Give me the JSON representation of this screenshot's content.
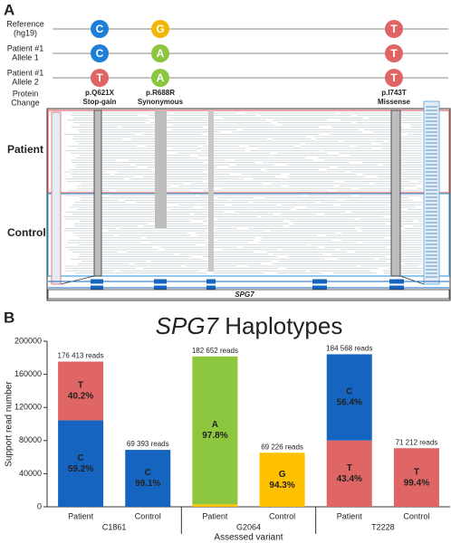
{
  "panel_a": {
    "label": "A",
    "allele_colors": {
      "C": "#1e7fd6",
      "G": "#f2b705",
      "T": "#e06464",
      "A": "#8cc63f"
    },
    "rows": [
      {
        "label": [
          "Reference",
          "(hg19)"
        ],
        "alleles": [
          "C",
          "G",
          "T"
        ]
      },
      {
        "label": [
          "Patient #1",
          "Allele 1"
        ],
        "alleles": [
          "C",
          "A",
          "T"
        ]
      },
      {
        "label": [
          "Patient #1",
          "Allele 2"
        ],
        "alleles": [
          "T",
          "A",
          "T"
        ]
      }
    ],
    "protein_label": [
      "Protein",
      "Change"
    ],
    "protein_changes": [
      [
        "p.Q621X",
        "Stop-gain"
      ],
      [
        "p.R688R",
        "Synonymous"
      ],
      [
        "p.I743T",
        "Missense"
      ]
    ],
    "tracks": [
      "Patient",
      "Control"
    ],
    "gene": "SPG7"
  },
  "panel_b": {
    "label": "B"
  },
  "chart_data": {
    "type": "stacked-bar",
    "title": {
      "gene": "SPG7",
      "text": "Haplotypes"
    },
    "y_label": "Support read number",
    "x_label": "Assessed variant",
    "groups": [
      "C1861",
      "G2064",
      "T2228"
    ],
    "ylim": [
      0,
      200000
    ],
    "yticks": [
      0,
      40000,
      80000,
      120000,
      160000,
      200000
    ],
    "bars": [
      {
        "category": "Patient",
        "group": 0,
        "total_label": "176 413 reads",
        "segments": [
          {
            "allele": "C",
            "percent_label": "59.2%",
            "value": 104437,
            "color": "#1565c0"
          },
          {
            "allele": "T",
            "percent_label": "40.2%",
            "value": 70918,
            "color": "#e06666"
          }
        ]
      },
      {
        "category": "Control",
        "group": 0,
        "total_label": "69 393 reads",
        "segments": [
          {
            "allele": "C",
            "percent_label": "99.1%",
            "value": 68768,
            "color": "#1565c0"
          }
        ]
      },
      {
        "category": "Patient",
        "group": 1,
        "total_label": "182 652 reads",
        "segments": [
          {
            "value": 3000,
            "color": "#ffc000"
          },
          {
            "allele": "A",
            "percent_label": "97.8%",
            "value": 178634,
            "color": "#8dc63f"
          }
        ]
      },
      {
        "category": "Control",
        "group": 1,
        "total_label": "69 226 reads",
        "segments": [
          {
            "allele": "G",
            "percent_label": "94.3%",
            "value": 65280,
            "color": "#ffc000"
          }
        ]
      },
      {
        "category": "Patient",
        "group": 2,
        "total_label": "184 568 reads",
        "segments": [
          {
            "allele": "T",
            "percent_label": "43.4%",
            "value": 80103,
            "color": "#e06666"
          },
          {
            "allele": "C",
            "percent_label": "56.4%",
            "value": 104096,
            "color": "#1565c0"
          }
        ]
      },
      {
        "category": "Control",
        "group": 2,
        "total_label": "71 212 reads",
        "segments": [
          {
            "allele": "T",
            "percent_label": "99.4%",
            "value": 70780,
            "color": "#e06666"
          }
        ]
      }
    ]
  }
}
